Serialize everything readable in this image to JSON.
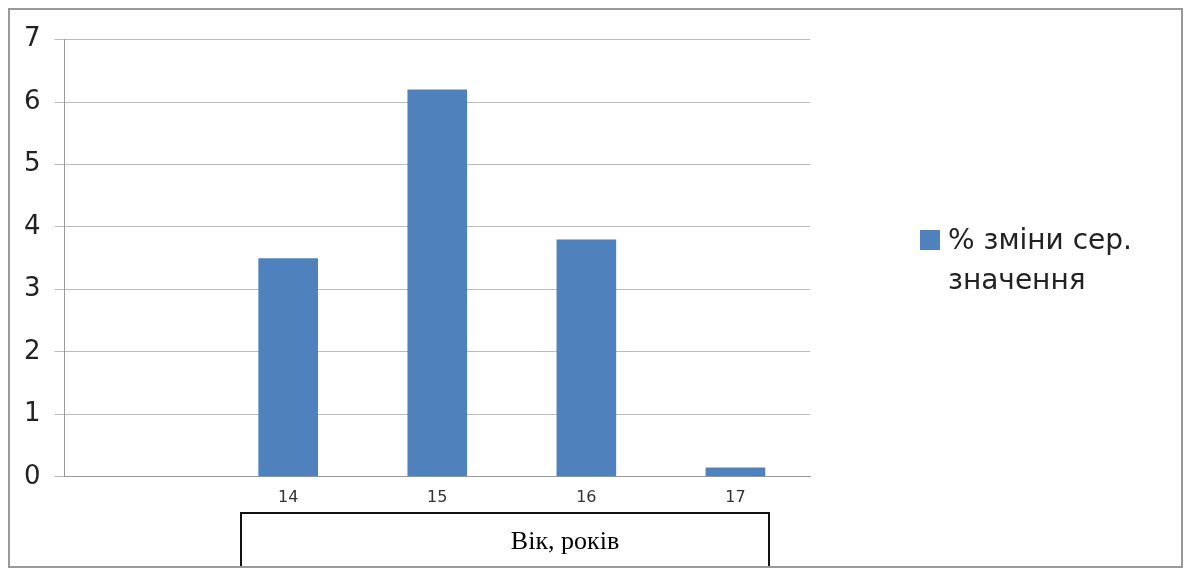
{
  "chart_data": {
    "type": "bar",
    "xlabel": "Вік, років",
    "categories": [
      null,
      "14",
      "15",
      "16",
      "17"
    ],
    "series": [
      {
        "name": "% зміни сер. значення",
        "color": "#4f81bd",
        "values": [
          null,
          3.5,
          6.2,
          3.8,
          0.15
        ]
      }
    ],
    "ylim": [
      0,
      7
    ],
    "yticks": [
      0,
      1,
      2,
      3,
      4,
      5,
      6,
      7
    ],
    "grid": "y",
    "legend": "right"
  }
}
